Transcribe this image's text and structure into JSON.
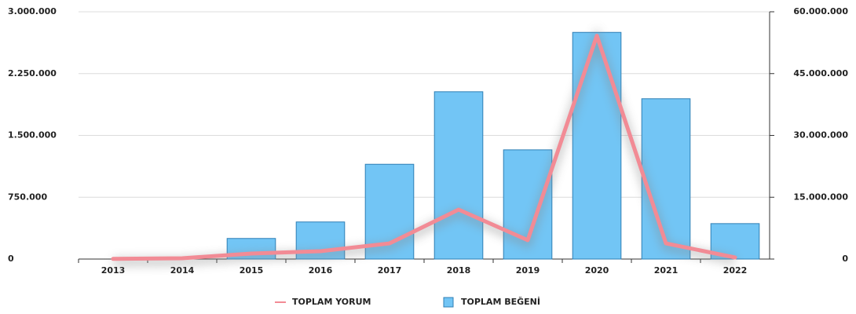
{
  "chart_data": {
    "type": "bar-line",
    "categories": [
      "2013",
      "2014",
      "2015",
      "2016",
      "2017",
      "2018",
      "2019",
      "2020",
      "2021",
      "2022"
    ],
    "series": [
      {
        "name": "TOPLAM YORUM",
        "type": "line",
        "color": "#f28b95",
        "axis": "y",
        "values": [
          2000,
          10000,
          67000,
          95000,
          190000,
          600000,
          229000,
          2710000,
          190000,
          19000
        ]
      },
      {
        "name": "TOPLAM BEĞENİ",
        "type": "bar",
        "color": "#72c5f5",
        "axis": "y2",
        "values": [
          0,
          0,
          5000000,
          9000000,
          23000000,
          40600000,
          26500000,
          55000000,
          38900000,
          8600000
        ]
      }
    ],
    "ylim": [
      0,
      3000000
    ],
    "yticks": [
      0,
      {
        "value": 750000,
        "label": "750.000"
      },
      {
        "value": 1500000,
        "label": "1.500.000"
      },
      {
        "value": 2250000,
        "label": "2.250.000"
      },
      {
        "value": 3000000,
        "label": "3.000.000"
      }
    ],
    "y2lim": [
      0,
      60000000
    ],
    "y2ticks": [
      0,
      {
        "value": 15000000,
        "label": "15.000.000"
      },
      {
        "value": 30000000,
        "label": "30.000.000"
      },
      {
        "value": 45000000,
        "label": "45.000.000"
      },
      {
        "value": 60000000,
        "label": "60.000.000"
      }
    ],
    "grid": true
  }
}
